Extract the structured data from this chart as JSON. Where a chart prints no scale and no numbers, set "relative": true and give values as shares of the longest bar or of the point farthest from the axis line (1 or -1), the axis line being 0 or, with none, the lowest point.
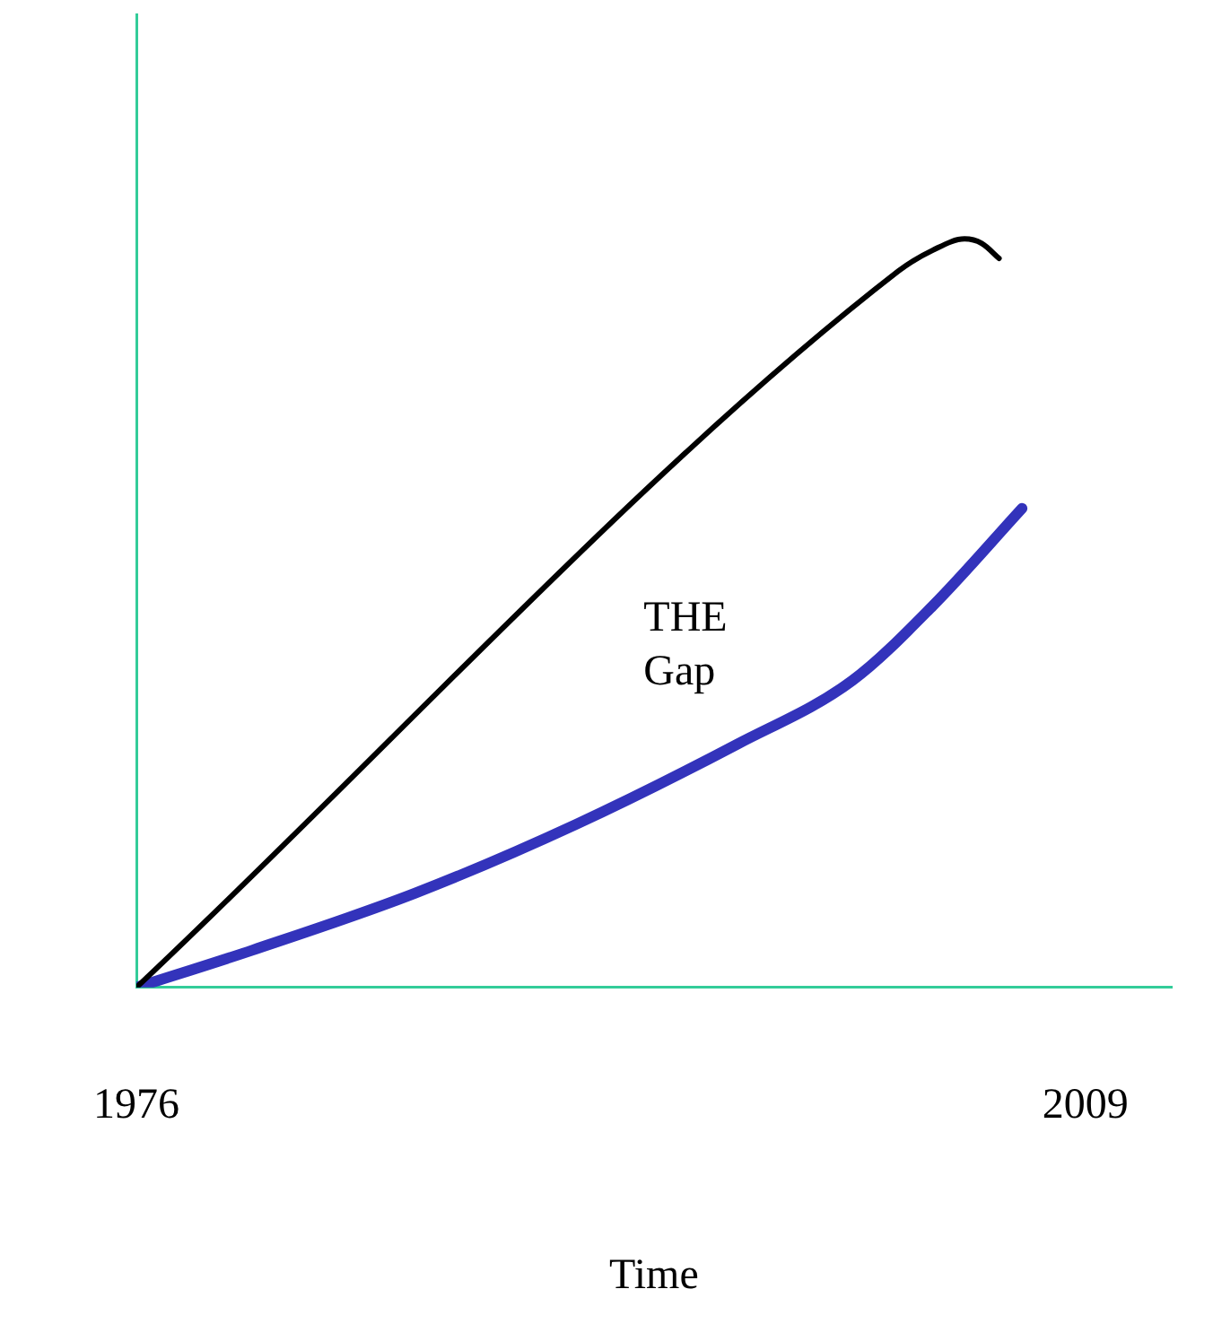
{
  "chart_data": {
    "type": "line",
    "relative": true,
    "xlabel": "Time",
    "xlim": [
      1976,
      2012
    ],
    "xticks": [
      1976,
      2009
    ],
    "grid": false,
    "legend": false,
    "marker": "none",
    "line_style": "solid",
    "series": [
      {
        "color": "#000000",
        "x": [
          1976,
          2002.5,
          2003.7,
          2004.8,
          2005.4,
          2006.0
        ],
        "values": [
          0,
          0.957,
          0.985,
          1,
          0.994,
          0.974
        ]
      },
      {
        "color": "#3333bb",
        "x": [
          1976,
          1980.05,
          1985.7,
          1991.3,
          1996.9,
          2000.9,
          2003.7,
          2006.8
        ],
        "values": [
          0,
          0.05,
          0.126,
          0.218,
          0.325,
          0.41,
          0.51,
          0.64
        ]
      }
    ],
    "annotations": [
      "THE Gap"
    ]
  }
}
